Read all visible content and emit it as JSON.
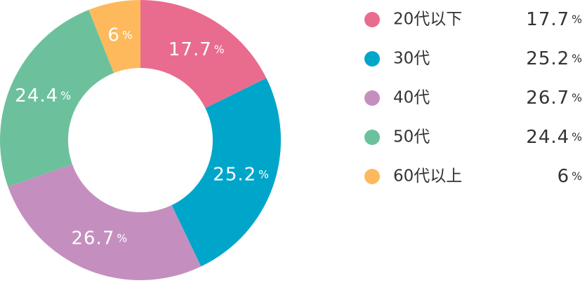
{
  "chart_data": {
    "type": "donut",
    "categories": [
      "20代以下",
      "30代",
      "40代",
      "50代",
      "60代以上"
    ],
    "values": [
      17.7,
      25.2,
      26.7,
      24.4,
      6
    ],
    "colors": [
      "#e96c8f",
      "#00a6c9",
      "#c48fbf",
      "#6cc19c",
      "#fdb95c"
    ],
    "unit": "%"
  }
}
